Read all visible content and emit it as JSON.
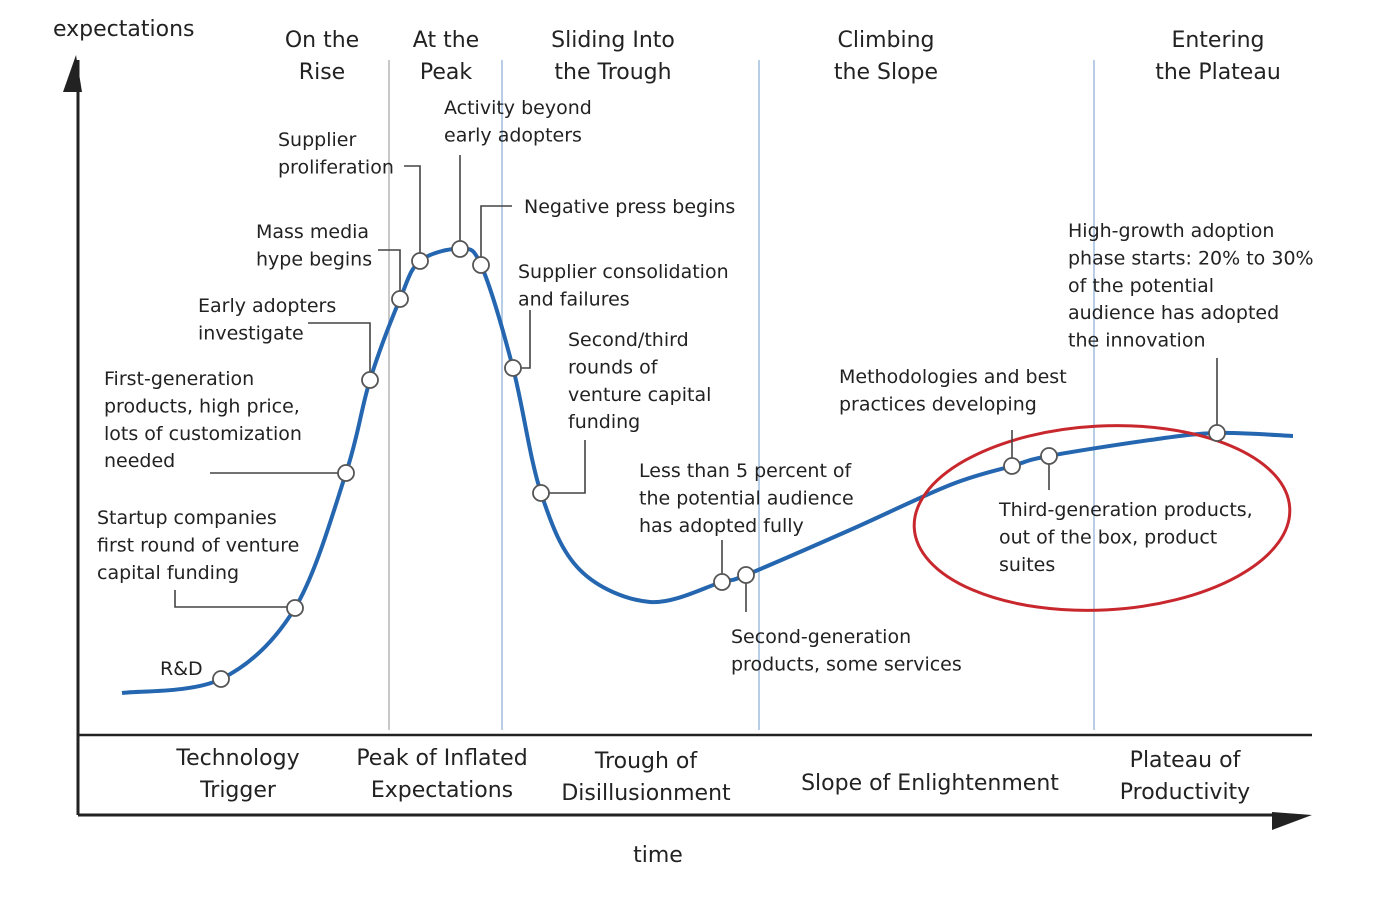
{
  "axis": {
    "y_label": "expectations",
    "x_label": "time"
  },
  "top_labels": [
    [
      "On the",
      "Rise"
    ],
    [
      "At the",
      "Peak"
    ],
    [
      "Sliding Into",
      "the Trough"
    ],
    [
      "Climbing",
      "the Slope"
    ],
    [
      "Entering",
      "the Plateau"
    ]
  ],
  "phases": [
    [
      "Technology",
      "Trigger"
    ],
    [
      "Peak of Inflated",
      "Expectations"
    ],
    [
      "Trough of",
      "Disillusionment"
    ],
    [
      "Slope of Enlightenment"
    ],
    [
      "Plateau of",
      "Productivity"
    ]
  ],
  "annotations": [
    [
      "Supplier",
      "proliferation"
    ],
    [
      "Activity beyond",
      "early adopters"
    ],
    [
      "Negative press begins"
    ],
    [
      "Mass media",
      "hype begins"
    ],
    [
      "Supplier consolidation",
      "and failures"
    ],
    [
      "Early adopters",
      "investigate"
    ],
    [
      "Second/third",
      "rounds of",
      "venture capital",
      "funding"
    ],
    [
      "First-generation",
      "products, high price,",
      "lots of customization",
      "needed"
    ],
    [
      "Less than 5 percent of",
      "the potential audience",
      "has adopted fully"
    ],
    [
      "Methodologies and best",
      "practices developing"
    ],
    [
      "High-growth adoption",
      "phase starts: 20% to 30%",
      "of the potential",
      "audience has adopted",
      "the innovation"
    ],
    [
      "Startup companies",
      "first round of venture",
      "capital funding"
    ],
    [
      "R&D"
    ],
    [
      "Third-generation products,",
      "out of the box, product",
      "suites"
    ],
    [
      "Second-generation",
      "products, some services"
    ]
  ]
}
